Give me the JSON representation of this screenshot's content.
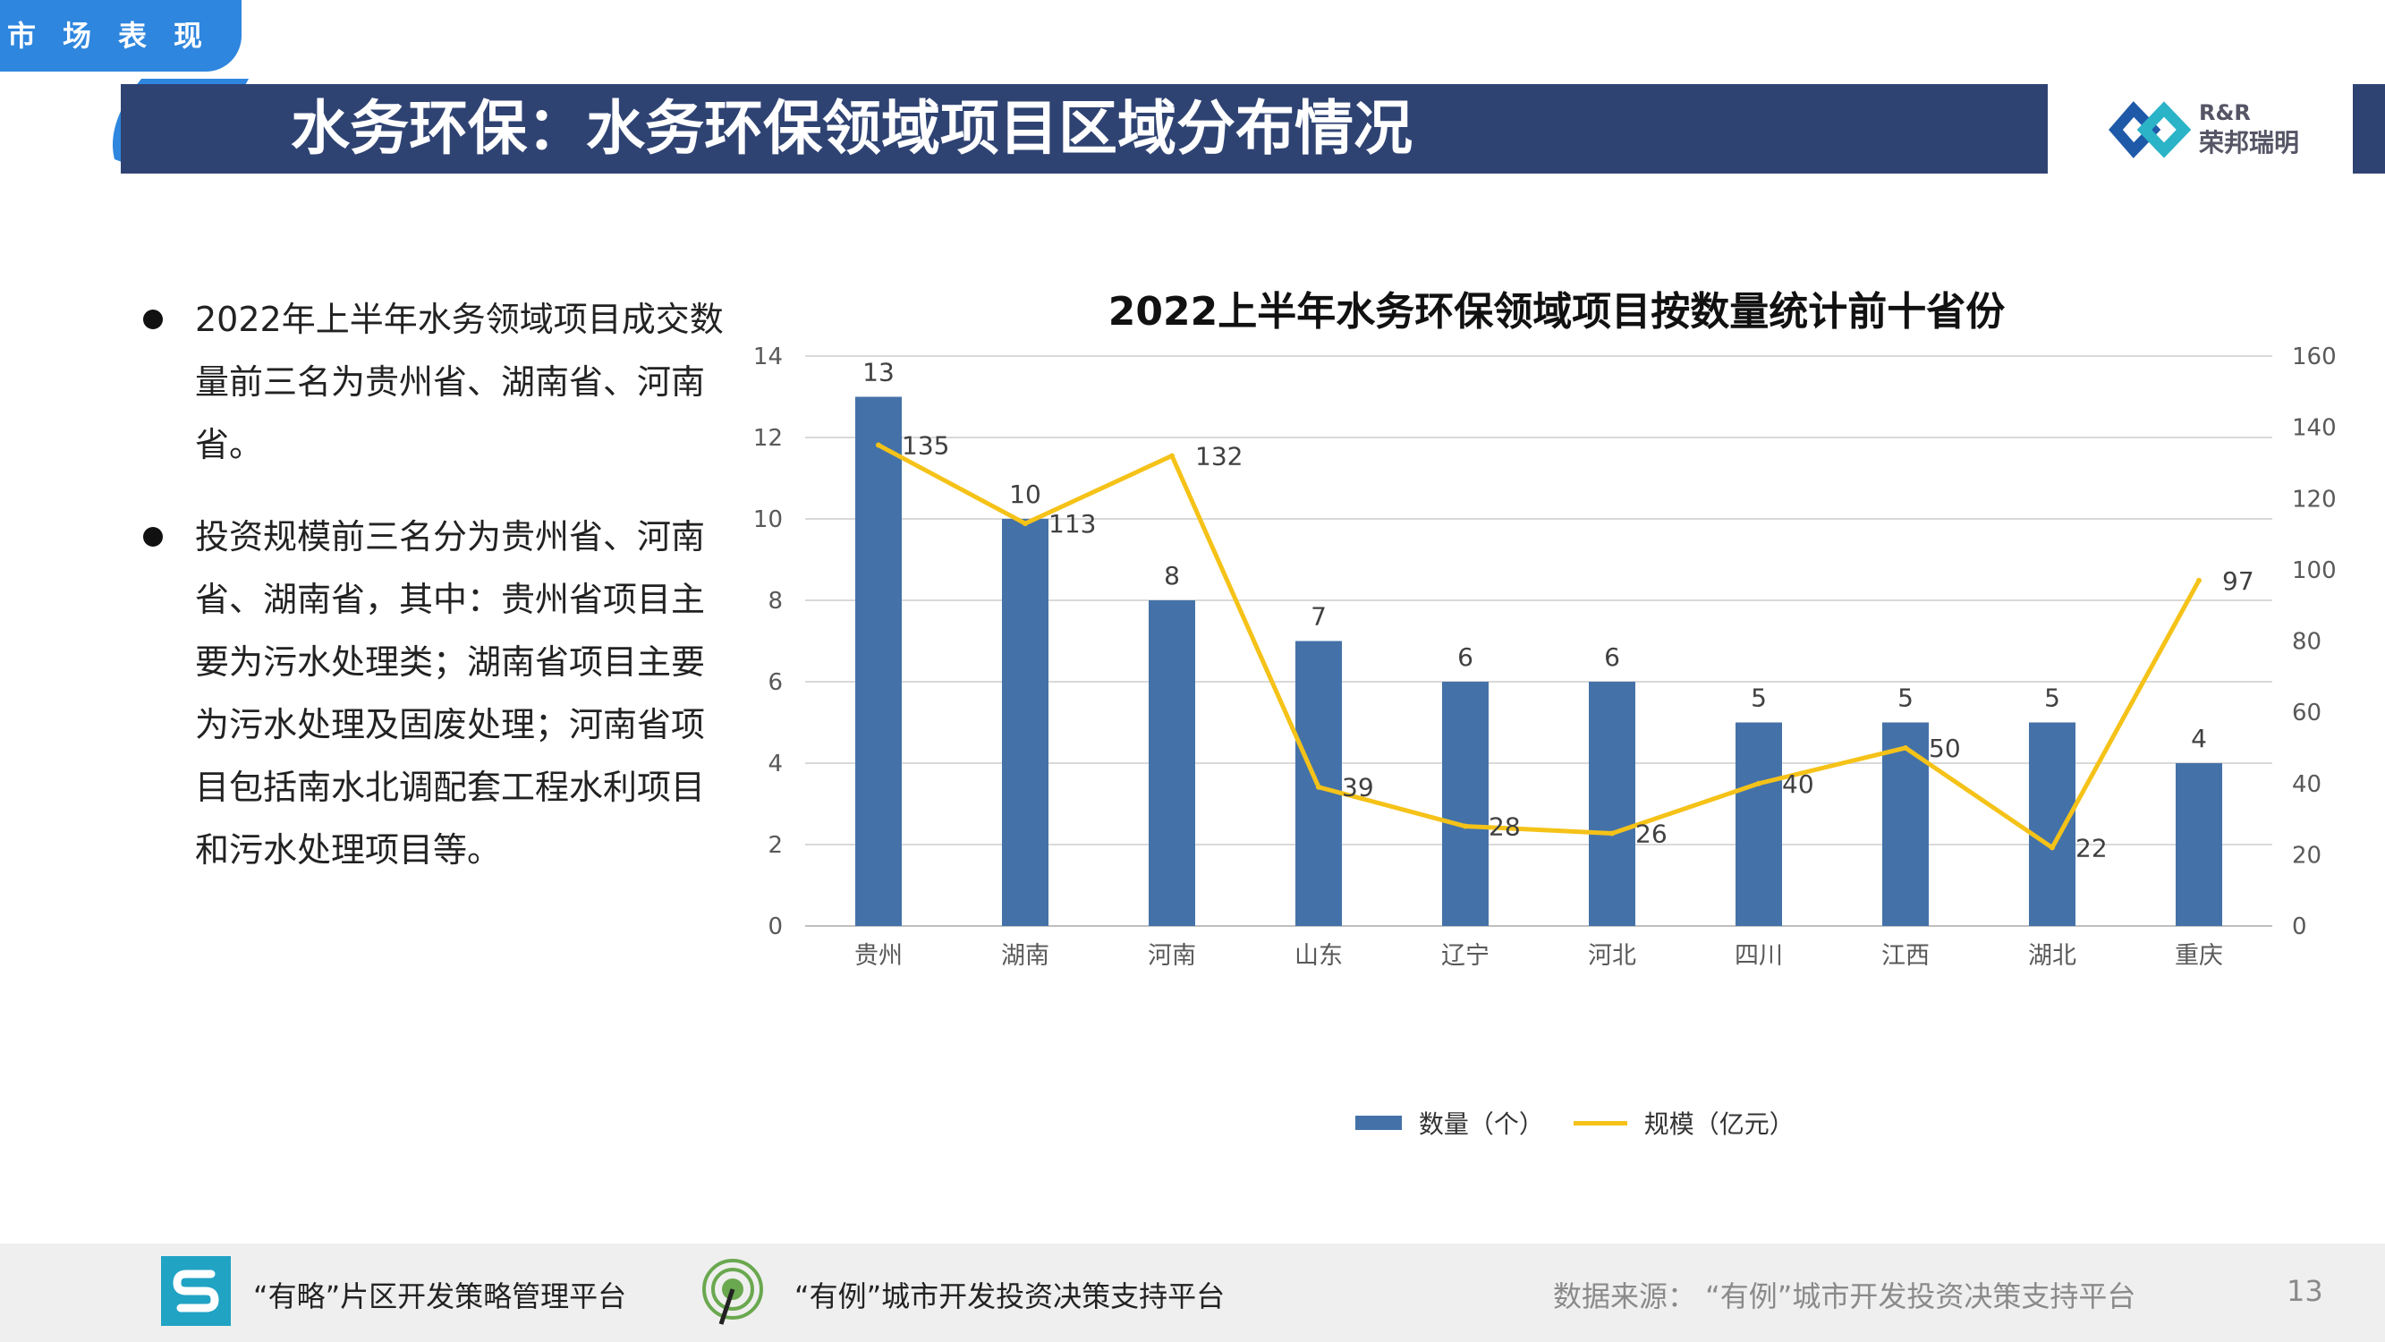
{
  "header": {
    "section_tab": "市场表现",
    "title": "水务环保：水务环保领域项目区域分布情况",
    "logo_text_top": "R&R",
    "logo_text_bottom": "荣邦瑞明"
  },
  "bullets": [
    "2022年上半年水务领域项目成交数量前三名为贵州省、湖南省、河南省。",
    "投资规模前三名分为贵州省、河南省、湖南省，其中：贵州省项目主要为污水处理类；湖南省项目主要为污水处理及固废处理；河南省项目包括南水北调配套工程水利项目和污水处理项目等。"
  ],
  "chart_data": {
    "type": "bar",
    "title": "2022上半年水务环保领域项目按数量统计前十省份",
    "categories": [
      "贵州",
      "湖南",
      "河南",
      "山东",
      "辽宁",
      "河北",
      "四川",
      "江西",
      "湖北",
      "重庆"
    ],
    "series": [
      {
        "name": "数量（个）",
        "type": "bar",
        "axis": "left",
        "color": "#4472a8",
        "values": [
          13,
          10,
          8,
          7,
          6,
          6,
          5,
          5,
          5,
          4
        ]
      },
      {
        "name": "规模（亿元）",
        "type": "line",
        "axis": "right",
        "color": "#f5c218",
        "values": [
          135,
          113,
          132,
          39,
          28,
          26,
          40,
          50,
          22,
          97
        ]
      }
    ],
    "ylim_left": [
      0,
      14
    ],
    "yticks_left": [
      0,
      2,
      4,
      6,
      8,
      10,
      12,
      14
    ],
    "ylim_right": [
      0,
      160
    ],
    "yticks_right": [
      0,
      20,
      40,
      60,
      80,
      100,
      120,
      140,
      160
    ],
    "grid": true,
    "legend_position": "bottom"
  },
  "footer": {
    "platform1": "“有略”片区开发策略管理平台",
    "platform2": "“有例”城市开发投资决策支持平台",
    "source": "数据来源：  “有例”城市开发投资决策支持平台",
    "page_number": "13"
  },
  "colors": {
    "title_bar": "#2f4373",
    "section_tab": "#2e86de",
    "bar": "#4472a8",
    "line": "#f5c218",
    "footer_bg": "#efefef"
  }
}
